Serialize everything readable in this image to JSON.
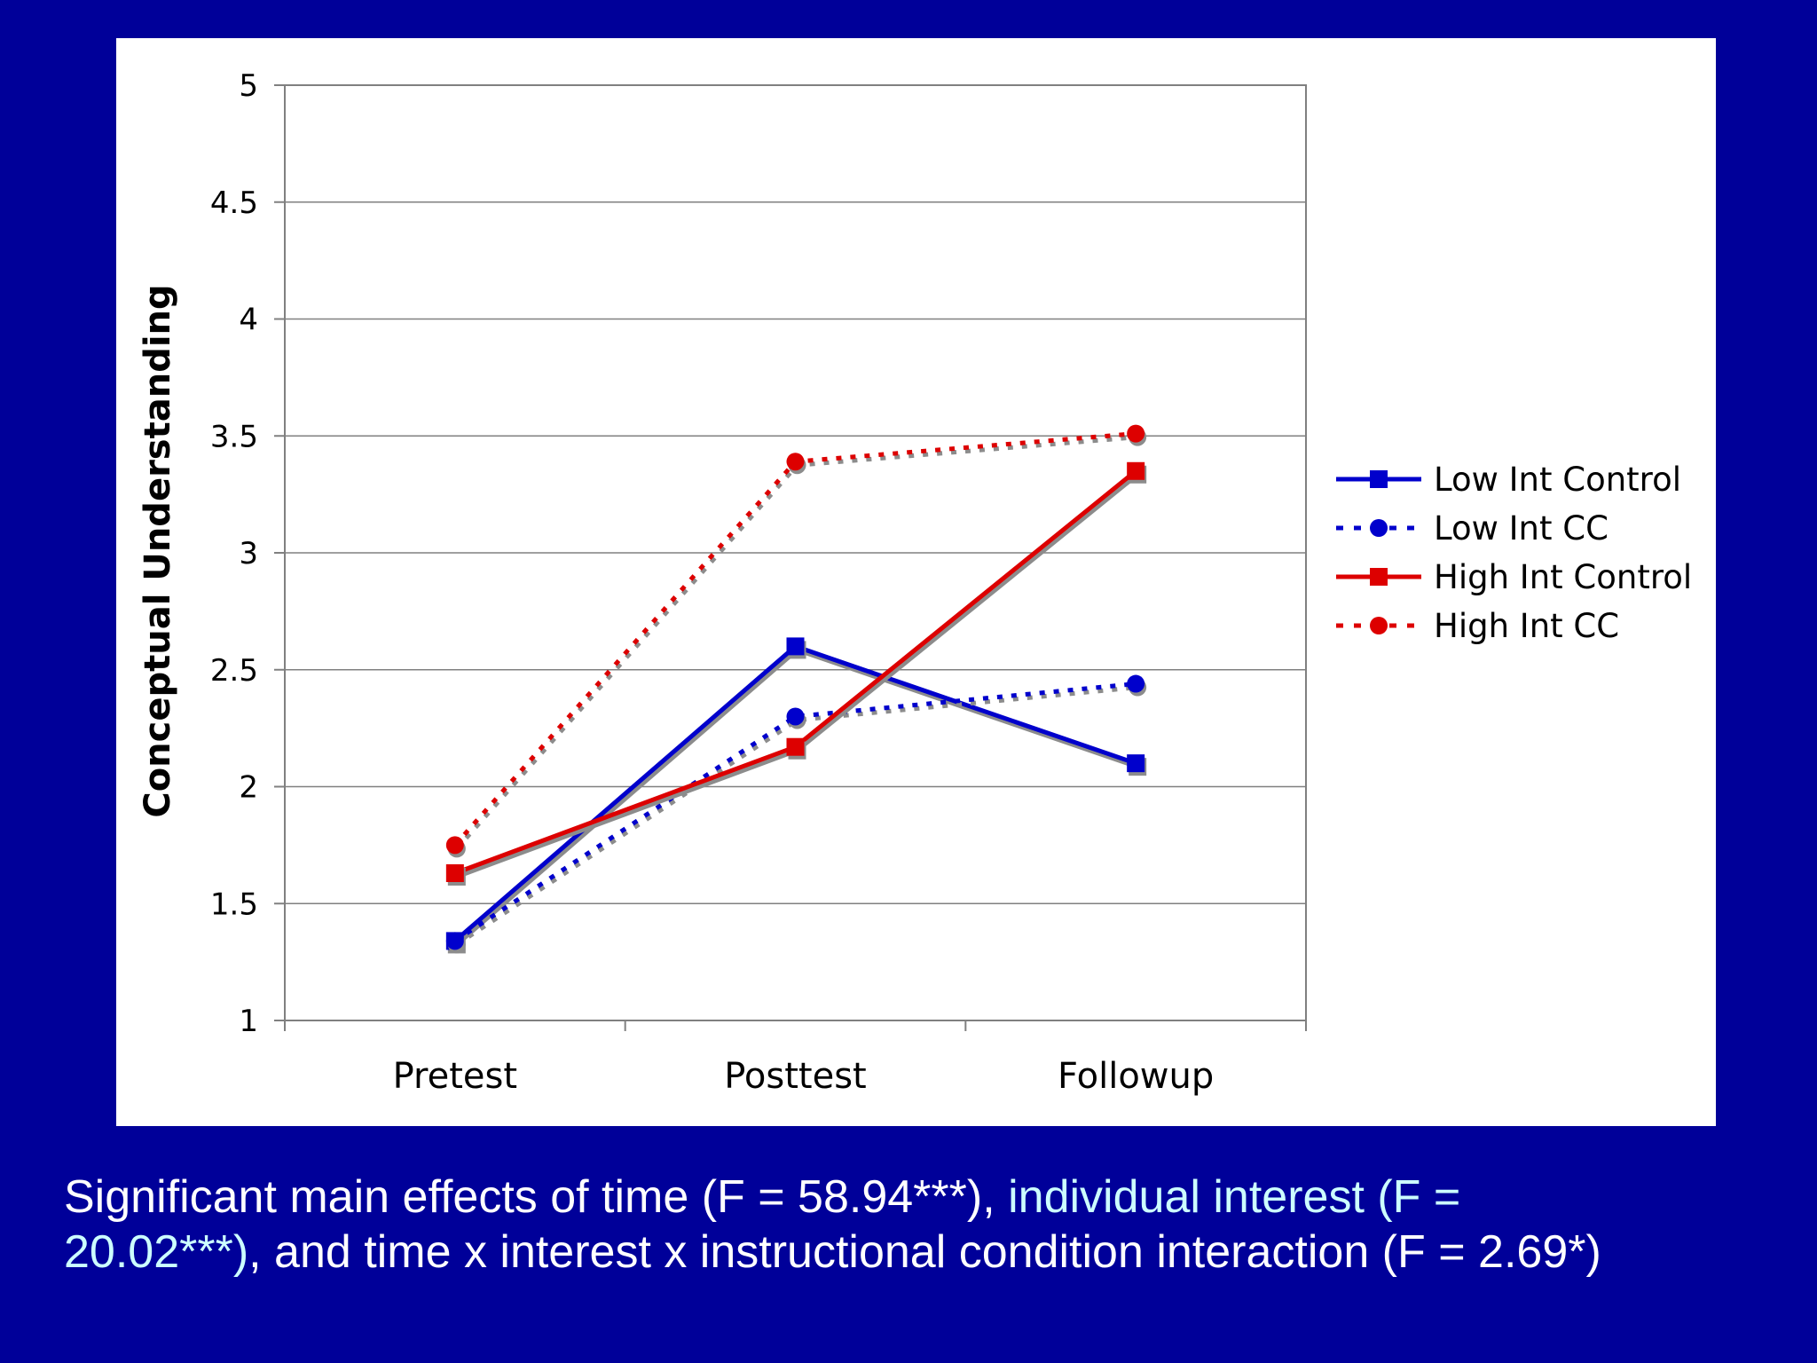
{
  "chart_data": {
    "type": "line",
    "categories": [
      "Pretest",
      "Posttest",
      "Followup"
    ],
    "ylabel": "Conceptual Understanding",
    "xlabel": "",
    "ylim": [
      1,
      5
    ],
    "yticks": [
      "1",
      "1.5",
      "2",
      "2.5",
      "3",
      "3.5",
      "4",
      "4.5",
      "5"
    ],
    "grid": "horizontal",
    "legend_position": "right",
    "series": [
      {
        "name": "Low Int Control",
        "values": [
          1.34,
          2.6,
          2.1
        ],
        "color": "#0000cc",
        "style": "solid",
        "marker": "square"
      },
      {
        "name": "Low Int CC",
        "values": [
          1.34,
          2.3,
          2.44
        ],
        "color": "#0000cc",
        "style": "dotted",
        "marker": "circle"
      },
      {
        "name": "High Int Control",
        "values": [
          1.63,
          2.17,
          3.35
        ],
        "color": "#dd0000",
        "style": "solid",
        "marker": "square"
      },
      {
        "name": "High Int CC",
        "values": [
          1.75,
          3.39,
          3.51
        ],
        "color": "#dd0000",
        "style": "dotted",
        "marker": "circle"
      }
    ]
  },
  "caption": {
    "line1_white_a": "Significant main effects of time (F = 58.94***), ",
    "line1_cyan": "individual interest (F =",
    "line2_cyan": "20.02***)",
    "line2_white": ", and time x interest x instructional condition interaction (F = 2.69*)"
  }
}
